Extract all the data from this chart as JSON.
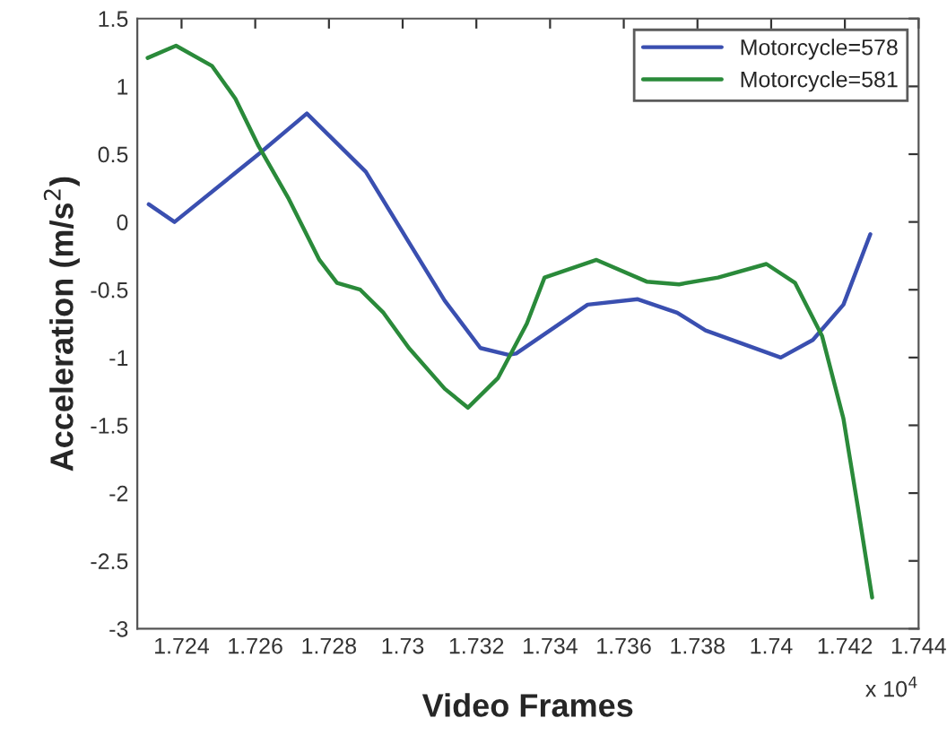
{
  "chart_data": {
    "type": "line",
    "xlabel": "Video Frames",
    "ylabel": "Acceleration (m/s$^{2}$)",
    "annotations": [
      "x 10$^{4}$"
    ],
    "xlim": [
      1.7228,
      1.744
    ],
    "xticks": [
      1.724,
      1.726,
      1.728,
      1.73,
      1.732,
      1.734,
      1.736,
      1.738,
      1.74,
      1.742,
      1.744
    ],
    "ylim": [
      -3,
      1.5
    ],
    "yticks": [
      -3,
      -2.5,
      -2,
      -1.5,
      -1,
      -0.5,
      0,
      0.5,
      1,
      1.5
    ],
    "grid": false,
    "legend": "top right",
    "marker": "none",
    "line_style": "solid",
    "series": [
      {
        "name": "Motorcycle=578",
        "color": "#3a4fb0",
        "x": [
          1.72311,
          1.72381,
          1.72609,
          1.7274,
          1.729,
          1.73017,
          1.73114,
          1.73211,
          1.73287,
          1.73308,
          1.73502,
          1.73638,
          1.73745,
          1.73822,
          1.74026,
          1.74113,
          1.74196,
          1.74269
        ],
        "values": [
          0.13,
          0.0,
          0.5,
          0.8,
          0.37,
          -0.15,
          -0.58,
          -0.93,
          -0.98,
          -0.97,
          -0.61,
          -0.57,
          -0.67,
          -0.8,
          -1.0,
          -0.87,
          -0.61,
          -0.09
        ]
      },
      {
        "name": "Motorcycle=581",
        "color": "#2a8a3a",
        "x": [
          1.72308,
          1.72385,
          1.72483,
          1.72546,
          1.72609,
          1.72691,
          1.72774,
          1.72822,
          1.72885,
          1.72948,
          1.73017,
          1.73114,
          1.73177,
          1.73259,
          1.73337,
          1.73385,
          1.73526,
          1.73662,
          1.7375,
          1.73856,
          1.73987,
          1.74065,
          1.74138,
          1.74196,
          1.74235,
          1.74274
        ],
        "values": [
          1.21,
          1.3,
          1.15,
          0.91,
          0.56,
          0.17,
          -0.28,
          -0.45,
          -0.5,
          -0.67,
          -0.93,
          -1.23,
          -1.37,
          -1.15,
          -0.75,
          -0.41,
          -0.28,
          -0.44,
          -0.46,
          -0.41,
          -0.31,
          -0.45,
          -0.84,
          -1.45,
          -2.1,
          -2.77
        ]
      }
    ]
  }
}
